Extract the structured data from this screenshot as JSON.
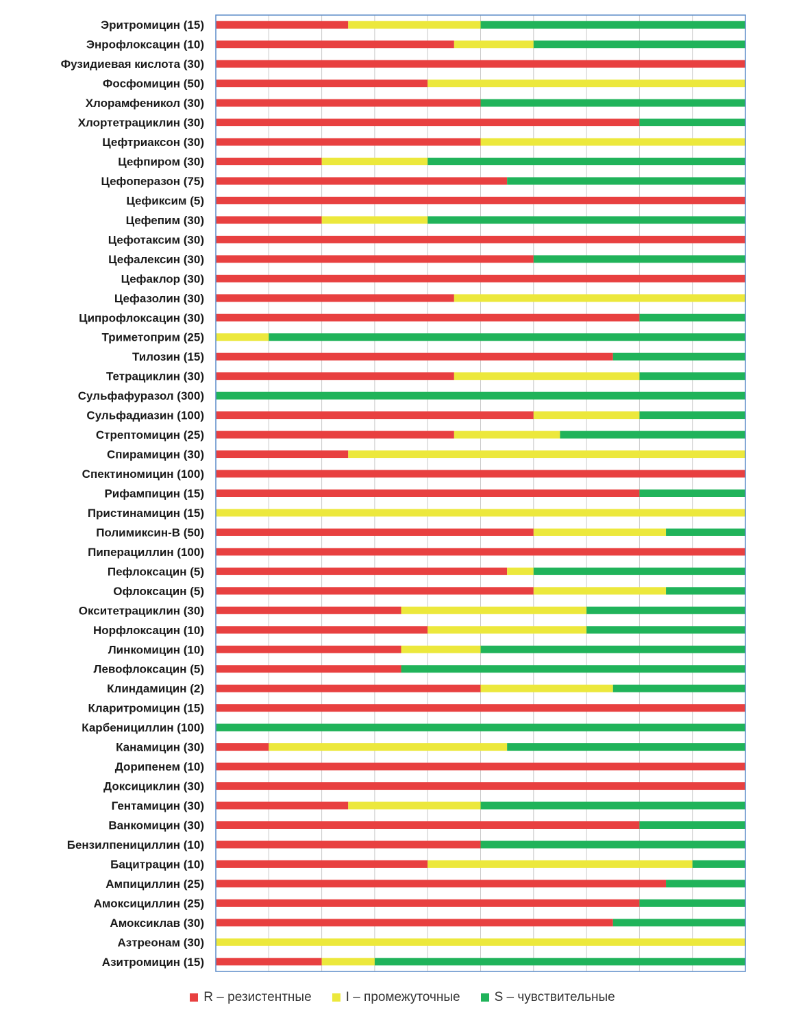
{
  "chart_data": {
    "type": "bar",
    "orientation": "horizontal",
    "stacked": true,
    "xlim": [
      0,
      100
    ],
    "grid": true,
    "legend_position": "bottom",
    "categories": [
      "Эритромицин (15)",
      "Энрофлоксацин (10)",
      "Фузидиевая кислота (30)",
      "Фосфомицин (50)",
      "Хлорамфеникол (30)",
      "Хлортетрациклин (30)",
      "Цефтриаксон (30)",
      "Цефпиром (30)",
      "Цефоперазон (75)",
      "Цефиксим (5)",
      "Цефепим (30)",
      "Цефотаксим (30)",
      "Цефалексин (30)",
      "Цефаклор (30)",
      "Цефазолин (30)",
      "Ципрофлоксацин (30)",
      "Триметоприм (25)",
      "Тилозин (15)",
      "Тетрациклин (30)",
      "Сульфафуразол (300)",
      "Сульфадиазин (100)",
      "Стрептомицин (25)",
      "Спирамицин (30)",
      "Спектиномицин (100)",
      "Рифампицин (15)",
      "Пристинамицин (15)",
      "Полимиксин-B (50)",
      "Пиперациллин (100)",
      "Пефлоксацин (5)",
      "Офлоксацин (5)",
      "Окситетрациклин (30)",
      "Норфлоксацин (10)",
      "Линкомицин (10)",
      "Левофлоксацин (5)",
      "Клиндамицин (2)",
      "Кларитромицин (15)",
      "Карбенициллин (100)",
      "Канамицин (30)",
      "Дорипенем (10)",
      "Доксициклин (30)",
      "Гентамицин (30)",
      "Ванкомицин (30)",
      "Бензилпенициллин (10)",
      "Бацитрацин (10)",
      "Ампициллин (25)",
      "Амоксициллин (25)",
      "Амоксиклав (30)",
      "Азтреонам (30)",
      "Азитромицин (15)"
    ],
    "series": [
      {
        "name": "R – резистентные",
        "color": "#e84040",
        "values": [
          25,
          45,
          100,
          40,
          50,
          80,
          50,
          20,
          55,
          100,
          20,
          100,
          60,
          100,
          45,
          80,
          0,
          75,
          45,
          0,
          60,
          45,
          25,
          100,
          80,
          0,
          60,
          100,
          55,
          60,
          35,
          40,
          35,
          35,
          50,
          100,
          0,
          10,
          100,
          100,
          25,
          80,
          50,
          40,
          85,
          80,
          75,
          0,
          20
        ]
      },
      {
        "name": "I – промежуточные",
        "color": "#ece83c",
        "values": [
          25,
          15,
          0,
          60,
          0,
          0,
          50,
          20,
          0,
          0,
          20,
          0,
          0,
          0,
          55,
          0,
          10,
          0,
          35,
          0,
          20,
          20,
          75,
          0,
          0,
          100,
          25,
          0,
          5,
          25,
          35,
          30,
          15,
          0,
          25,
          0,
          0,
          45,
          0,
          0,
          25,
          0,
          0,
          50,
          0,
          0,
          0,
          100,
          10
        ]
      },
      {
        "name": "S – чувствительные",
        "color": "#20b35a",
        "values": [
          50,
          40,
          0,
          0,
          50,
          20,
          0,
          60,
          45,
          0,
          60,
          0,
          40,
          0,
          0,
          20,
          90,
          25,
          20,
          100,
          20,
          35,
          0,
          0,
          20,
          0,
          15,
          0,
          40,
          15,
          30,
          30,
          50,
          65,
          25,
          0,
          100,
          45,
          0,
          0,
          50,
          20,
          50,
          10,
          15,
          20,
          25,
          0,
          70
        ]
      }
    ]
  }
}
